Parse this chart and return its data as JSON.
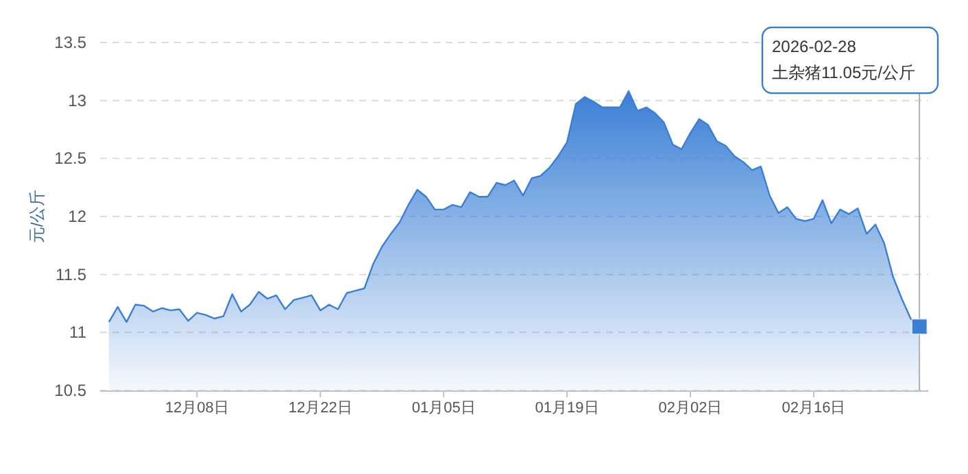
{
  "chart_data": {
    "type": "area",
    "ylabel": "元/公斤",
    "x": [
      "2025-11-28",
      "2025-11-29",
      "2025-11-30",
      "2025-12-01",
      "2025-12-02",
      "2025-12-03",
      "2025-12-04",
      "2025-12-05",
      "2025-12-06",
      "2025-12-07",
      "2025-12-08",
      "2025-12-09",
      "2025-12-10",
      "2025-12-11",
      "2025-12-12",
      "2025-12-13",
      "2025-12-14",
      "2025-12-15",
      "2025-12-16",
      "2025-12-17",
      "2025-12-18",
      "2025-12-19",
      "2025-12-20",
      "2025-12-21",
      "2025-12-22",
      "2025-12-23",
      "2025-12-24",
      "2025-12-25",
      "2025-12-26",
      "2025-12-27",
      "2025-12-28",
      "2025-12-29",
      "2025-12-30",
      "2025-12-31",
      "2026-01-01",
      "2026-01-02",
      "2026-01-03",
      "2026-01-04",
      "2026-01-05",
      "2026-01-06",
      "2026-01-07",
      "2026-01-08",
      "2026-01-09",
      "2026-01-10",
      "2026-01-11",
      "2026-01-12",
      "2026-01-13",
      "2026-01-14",
      "2026-01-15",
      "2026-01-16",
      "2026-01-17",
      "2026-01-18",
      "2026-01-19",
      "2026-01-20",
      "2026-01-21",
      "2026-01-22",
      "2026-01-23",
      "2026-01-24",
      "2026-01-25",
      "2026-01-26",
      "2026-01-27",
      "2026-01-28",
      "2026-01-29",
      "2026-01-30",
      "2026-01-31",
      "2026-02-01",
      "2026-02-02",
      "2026-02-03",
      "2026-02-04",
      "2026-02-05",
      "2026-02-06",
      "2026-02-07",
      "2026-02-08",
      "2026-02-09",
      "2026-02-10",
      "2026-02-11",
      "2026-02-12",
      "2026-02-13",
      "2026-02-14",
      "2026-02-15",
      "2026-02-16",
      "2026-02-17",
      "2026-02-18",
      "2026-02-19",
      "2026-02-20",
      "2026-02-21",
      "2026-02-22",
      "2026-02-23",
      "2026-02-24",
      "2026-02-25",
      "2026-02-26",
      "2026-02-27",
      "2026-02-28"
    ],
    "series": [
      {
        "color": "#3a7fd5",
        "values": [
          11.09,
          11.22,
          11.09,
          11.24,
          11.23,
          11.18,
          11.21,
          11.19,
          11.2,
          11.1,
          11.17,
          11.15,
          11.12,
          11.14,
          11.33,
          11.18,
          11.24,
          11.35,
          11.29,
          11.32,
          11.2,
          11.28,
          11.3,
          11.32,
          11.19,
          11.24,
          11.2,
          11.34,
          11.36,
          11.38,
          11.59,
          11.74,
          11.85,
          11.95,
          12.1,
          12.23,
          12.17,
          12.06,
          12.06,
          12.1,
          12.08,
          12.21,
          12.17,
          12.17,
          12.29,
          12.27,
          12.31,
          12.18,
          12.33,
          12.35,
          12.42,
          12.52,
          12.64,
          12.97,
          13.03,
          12.99,
          12.94,
          12.94,
          12.94,
          13.08,
          12.91,
          12.94,
          12.89,
          12.81,
          12.62,
          12.58,
          12.72,
          12.84,
          12.79,
          12.65,
          12.61,
          12.52,
          12.47,
          12.4,
          12.43,
          12.18,
          12.03,
          12.08,
          11.98,
          11.96,
          11.98,
          12.14,
          11.94,
          12.06,
          12.02,
          12.07,
          11.85,
          11.93,
          11.77,
          11.48,
          11.29,
          11.12,
          11.05
        ]
      }
    ],
    "xlim": [
      "2025-11-27",
      "2026-03-01"
    ],
    "xticks": [
      {
        "value": "2025-12-08",
        "label": "12月08日"
      },
      {
        "value": "2025-12-22",
        "label": "12月22日"
      },
      {
        "value": "2026-01-05",
        "label": "01月05日"
      },
      {
        "value": "2026-01-19",
        "label": "01月19日"
      },
      {
        "value": "2026-02-02",
        "label": "02月02日"
      },
      {
        "value": "2026-02-16",
        "label": "02月16日"
      }
    ],
    "ylim": [
      10.5,
      13.5
    ],
    "yticks": [
      10.5,
      11,
      11.5,
      12,
      12.5,
      13,
      13.5
    ],
    "grid": "y",
    "marker": "none",
    "line_style": "solid",
    "ref_lines": [
      {
        "axis": "x",
        "value": "2026-02-28",
        "color": "#b0b0b0"
      }
    ],
    "annotations": [
      "2026-02-28\n土杂猪11.05元/公斤"
    ]
  }
}
